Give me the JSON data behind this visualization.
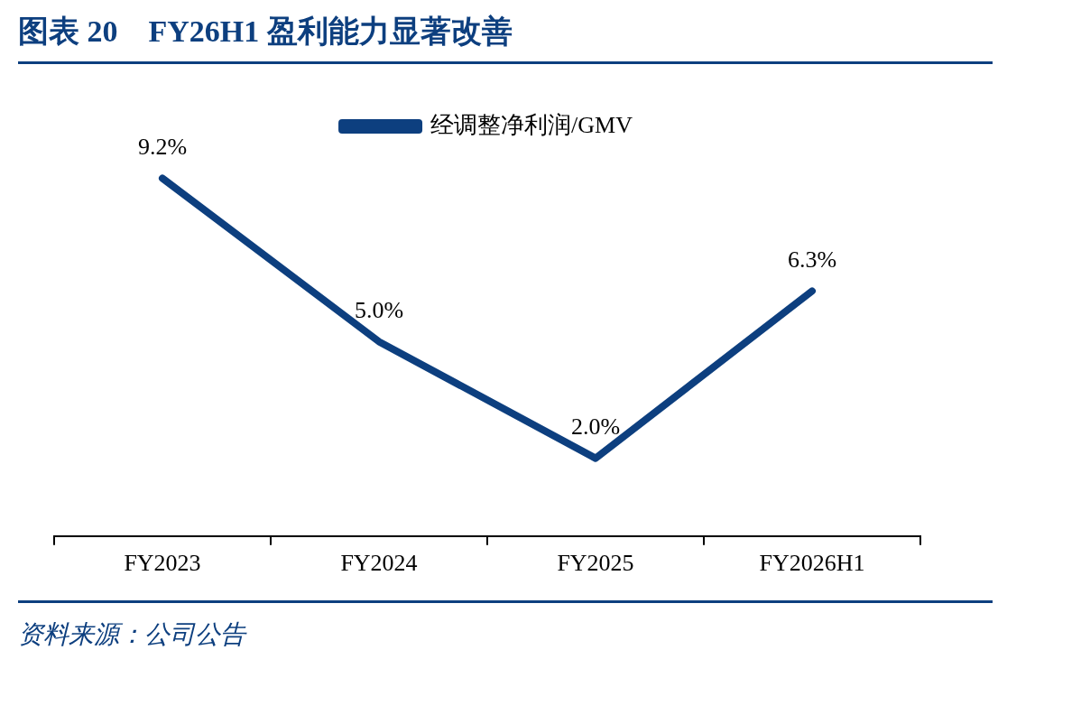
{
  "chart_data": {
    "type": "line",
    "title": "图表 20　FY26H1 盈利能力显著改善",
    "categories": [
      "FY2023",
      "FY2024",
      "FY2025",
      "FY2026H1"
    ],
    "series": [
      {
        "name": "经调整净利润/GMV",
        "color": "#0d3f7f",
        "values": [
          9.2,
          5.0,
          2.0,
          6.3
        ],
        "value_labels": [
          "9.2%",
          "5.0%",
          "2.0%",
          "6.3%"
        ]
      }
    ],
    "tick_labels": "x",
    "legend": "top",
    "marker": "none",
    "line_style": "solid",
    "annotations": [
      "资料来源：公司公告"
    ]
  }
}
